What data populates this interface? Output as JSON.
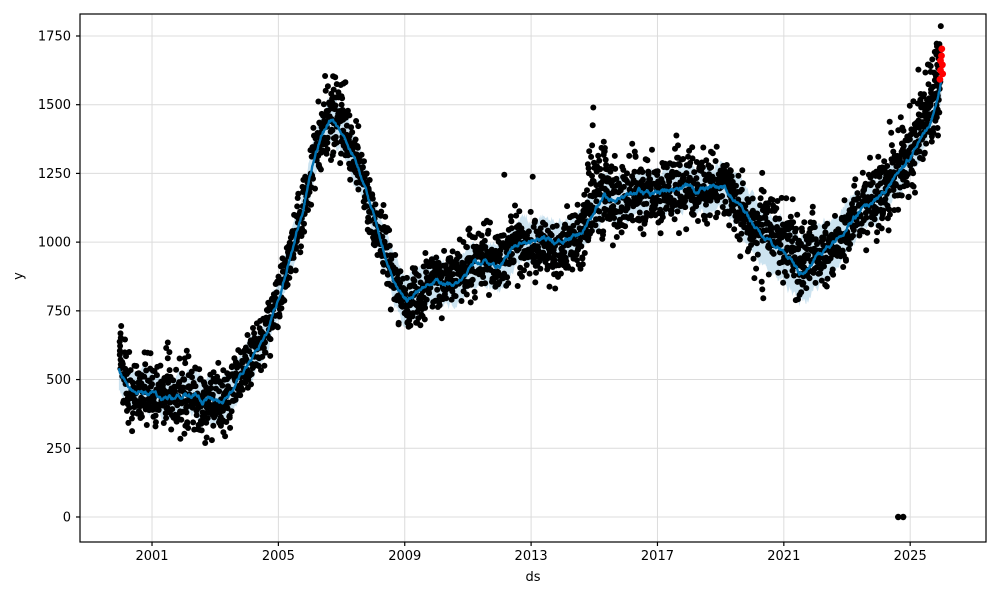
{
  "chart_data": {
    "type": "scatter",
    "title": "",
    "xlabel": "ds",
    "ylabel": "y",
    "grid": true,
    "legend": null,
    "x_ticks": [
      2001,
      2005,
      2009,
      2013,
      2017,
      2021,
      2025
    ],
    "x_tick_labels": [
      "2001",
      "2005",
      "2009",
      "2013",
      "2017",
      "2021",
      "2025"
    ],
    "y_ticks": [
      0,
      250,
      500,
      750,
      1000,
      1250,
      1500,
      1750
    ],
    "y_tick_labels": [
      "0",
      "250",
      "500",
      "750",
      "1000",
      "1250",
      "1500",
      "1750"
    ],
    "x_range": [
      1998.72,
      2027.4
    ],
    "y_range": [
      -91,
      1830
    ],
    "colors": {
      "forecast_line": "#0072B2",
      "uncertainty_band": "#0072B2",
      "uncertainty_band_opacity": 0.2,
      "actuals_points": "#000000",
      "anomaly_points": "#ff0000",
      "grid": "#dcdcdc",
      "spine": "#000000",
      "tick_text": "#000000"
    },
    "forecast_line": {
      "name": "yhat",
      "points": [
        [
          1999.95,
          540
        ],
        [
          2000.3,
          470
        ],
        [
          2000.7,
          455
        ],
        [
          2001.0,
          450
        ],
        [
          2001.3,
          435
        ],
        [
          2001.7,
          430
        ],
        [
          2002.0,
          445
        ],
        [
          2002.3,
          450
        ],
        [
          2002.6,
          420
        ],
        [
          2002.9,
          435
        ],
        [
          2003.2,
          415
        ],
        [
          2003.5,
          450
        ],
        [
          2003.8,
          520
        ],
        [
          2004.2,
          580
        ],
        [
          2004.6,
          660
        ],
        [
          2005.0,
          790
        ],
        [
          2005.4,
          950
        ],
        [
          2005.8,
          1130
        ],
        [
          2006.1,
          1290
        ],
        [
          2006.4,
          1400
        ],
        [
          2006.65,
          1448
        ],
        [
          2006.9,
          1420
        ],
        [
          2007.1,
          1390
        ],
        [
          2007.4,
          1310
        ],
        [
          2007.7,
          1210
        ],
        [
          2008.0,
          1100
        ],
        [
          2008.3,
          990
        ],
        [
          2008.6,
          880
        ],
        [
          2008.9,
          800
        ],
        [
          2009.1,
          785
        ],
        [
          2009.4,
          815
        ],
        [
          2009.7,
          840
        ],
        [
          2010.0,
          855
        ],
        [
          2010.4,
          845
        ],
        [
          2010.8,
          865
        ],
        [
          2011.2,
          925
        ],
        [
          2011.6,
          930
        ],
        [
          2012.0,
          905
        ],
        [
          2012.4,
          975
        ],
        [
          2012.7,
          1010
        ],
        [
          2013.0,
          1000
        ],
        [
          2013.4,
          1015
        ],
        [
          2013.8,
          1000
        ],
        [
          2014.2,
          1015
        ],
        [
          2014.6,
          1040
        ],
        [
          2015.0,
          1120
        ],
        [
          2015.3,
          1165
        ],
        [
          2015.6,
          1150
        ],
        [
          2016.0,
          1160
        ],
        [
          2016.4,
          1190
        ],
        [
          2016.8,
          1175
        ],
        [
          2017.2,
          1185
        ],
        [
          2017.6,
          1190
        ],
        [
          2017.9,
          1210
        ],
        [
          2018.2,
          1185
        ],
        [
          2018.6,
          1195
        ],
        [
          2019.0,
          1205
        ],
        [
          2019.3,
          1175
        ],
        [
          2019.6,
          1140
        ],
        [
          2020.0,
          1065
        ],
        [
          2020.4,
          1010
        ],
        [
          2020.8,
          985
        ],
        [
          2021.2,
          940
        ],
        [
          2021.5,
          888
        ],
        [
          2021.7,
          905
        ],
        [
          2022.0,
          945
        ],
        [
          2022.4,
          985
        ],
        [
          2022.8,
          1020
        ],
        [
          2023.2,
          1090
        ],
        [
          2023.6,
          1130
        ],
        [
          2024.0,
          1155
        ],
        [
          2024.4,
          1215
        ],
        [
          2024.8,
          1280
        ],
        [
          2025.1,
          1330
        ],
        [
          2025.4,
          1390
        ],
        [
          2025.65,
          1440
        ],
        [
          2025.85,
          1510
        ],
        [
          2026.0,
          1595
        ]
      ]
    },
    "uncertainty_band": {
      "half_widths": [
        [
          1999.95,
          70
        ],
        [
          2001.0,
          75
        ],
        [
          2002.0,
          80
        ],
        [
          2003.0,
          85
        ],
        [
          2004.0,
          72
        ],
        [
          2005.0,
          70
        ],
        [
          2006.0,
          75
        ],
        [
          2007.0,
          80
        ],
        [
          2008.0,
          85
        ],
        [
          2009.0,
          90
        ],
        [
          2010.0,
          80
        ],
        [
          2011.0,
          78
        ],
        [
          2012.0,
          80
        ],
        [
          2013.0,
          78
        ],
        [
          2014.0,
          75
        ],
        [
          2015.0,
          78
        ],
        [
          2016.0,
          80
        ],
        [
          2017.0,
          78
        ],
        [
          2018.0,
          80
        ],
        [
          2019.0,
          85
        ],
        [
          2020.0,
          105
        ],
        [
          2021.0,
          115
        ],
        [
          2021.7,
          118
        ],
        [
          2022.5,
          95
        ],
        [
          2023.5,
          85
        ],
        [
          2024.5,
          75
        ],
        [
          2025.5,
          60
        ],
        [
          2026.0,
          52
        ]
      ]
    },
    "actuals_scatter": {
      "start_column": {
        "t": 2000.0,
        "values": [
          540,
          555,
          572,
          590,
          605,
          622,
          638,
          652,
          668,
          695
        ]
      },
      "segments": [
        {
          "t0": 2000.05,
          "t1": 2003.55,
          "density": 110,
          "bias": -5,
          "sigma": 60
        },
        {
          "t0": 2003.55,
          "t1": 2006.25,
          "density": 105,
          "bias": 5,
          "sigma": 50
        },
        {
          "t0": 2006.25,
          "t1": 2007.35,
          "density": 130,
          "bias": 10,
          "sigma": 75
        },
        {
          "t0": 2007.35,
          "t1": 2008.75,
          "density": 110,
          "bias": 5,
          "sigma": 60
        },
        {
          "t0": 2008.75,
          "t1": 2009.65,
          "density": 120,
          "bias": -15,
          "sigma": 48
        },
        {
          "t0": 2009.65,
          "t1": 2012.55,
          "density": 105,
          "bias": 10,
          "sigma": 55
        },
        {
          "t0": 2012.55,
          "t1": 2014.65,
          "density": 110,
          "bias": -25,
          "sigma": 58
        },
        {
          "t0": 2014.65,
          "t1": 2015.45,
          "density": 130,
          "bias": 30,
          "sigma": 85
        },
        {
          "t0": 2015.45,
          "t1": 2019.35,
          "density": 110,
          "bias": 0,
          "sigma": 65
        },
        {
          "t0": 2019.35,
          "t1": 2020.15,
          "density": 115,
          "bias": -25,
          "sigma": 65
        },
        {
          "t0": 2020.15,
          "t1": 2021.95,
          "density": 115,
          "bias": 55,
          "sigma": 70
        },
        {
          "t0": 2021.95,
          "t1": 2023.55,
          "density": 105,
          "bias": -5,
          "sigma": 55
        },
        {
          "t0": 2023.55,
          "t1": 2025.25,
          "density": 115,
          "bias": 15,
          "sigma": 70
        },
        {
          "t0": 2025.25,
          "t1": 2025.97,
          "density": 165,
          "bias": 45,
          "sigma": 95
        }
      ],
      "extra_points": [
        [
          2001.45,
          615
        ],
        [
          2001.5,
          635
        ],
        [
          2001.55,
          600
        ],
        [
          2002.05,
          560
        ],
        [
          2002.1,
          605
        ],
        [
          2002.15,
          585
        ],
        [
          2003.12,
          345
        ],
        [
          2003.18,
          332
        ],
        [
          2003.24,
          352
        ],
        [
          2006.7,
          1522
        ],
        [
          2006.75,
          1555
        ],
        [
          2006.8,
          1600
        ],
        [
          2006.85,
          1575
        ],
        [
          2006.9,
          1545
        ],
        [
          2007.0,
          1500
        ],
        [
          2007.05,
          1470
        ],
        [
          2012.15,
          1245
        ],
        [
          2013.05,
          1238
        ],
        [
          2014.9,
          1310
        ],
        [
          2014.93,
          1352
        ],
        [
          2014.95,
          1425
        ],
        [
          2014.97,
          1490
        ],
        [
          2015.0,
          1270
        ],
        [
          2015.3,
          1365
        ],
        [
          2015.33,
          1330
        ],
        [
          2015.36,
          1300
        ],
        [
          2015.4,
          1265
        ],
        [
          2016.2,
          1358
        ],
        [
          2017.6,
          1388
        ],
        [
          2017.65,
          1352
        ],
        [
          2018.0,
          1332
        ],
        [
          2018.1,
          1345
        ],
        [
          2019.3,
          1262
        ],
        [
          2019.35,
          1240
        ],
        [
          2020.3,
          856
        ],
        [
          2020.32,
          828
        ],
        [
          2020.35,
          796
        ],
        [
          2021.45,
          792
        ],
        [
          2021.5,
          808
        ],
        [
          2021.55,
          818
        ],
        [
          2024.35,
          1438
        ],
        [
          2024.4,
          1398
        ],
        [
          2025.6,
          1645
        ],
        [
          2025.7,
          1665
        ],
        [
          2025.78,
          1692
        ],
        [
          2025.85,
          1712
        ],
        [
          2025.9,
          1700
        ],
        [
          2025.93,
          1688
        ]
      ],
      "zero_outliers": [
        [
          2024.62,
          0
        ],
        [
          2024.78,
          0
        ]
      ]
    },
    "anomaly_points": [
      [
        2025.94,
        1592
      ],
      [
        2025.96,
        1625
      ],
      [
        2025.96,
        1660
      ],
      [
        2025.99,
        1678
      ],
      [
        2026.0,
        1703
      ],
      [
        2026.02,
        1645
      ],
      [
        2026.03,
        1612
      ]
    ]
  },
  "labels": {
    "x_axis": "ds",
    "y_axis": "y"
  }
}
